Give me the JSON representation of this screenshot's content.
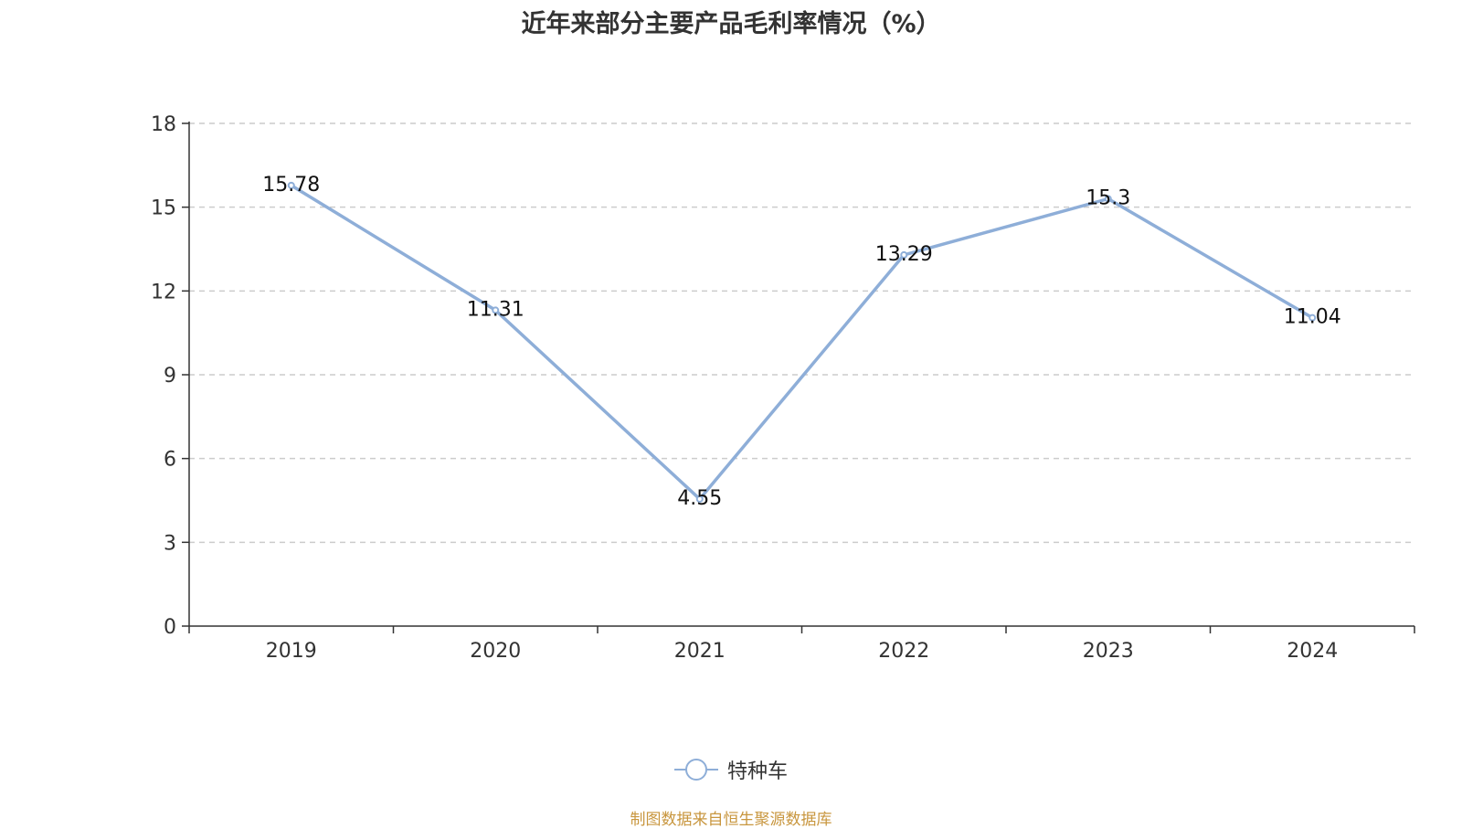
{
  "title": "近年来部分主要产品毛利率情况（%）",
  "source_note": "制图数据来自恒生聚源数据库",
  "colors": {
    "series_line": "#8eaed8",
    "axis": "#333333",
    "grid": "#cccccc",
    "source_note": "#c8963e"
  },
  "chart_data": {
    "type": "line",
    "title": "近年来部分主要产品毛利率情况（%）",
    "categories": [
      "2019",
      "2020",
      "2021",
      "2022",
      "2023",
      "2024"
    ],
    "series": [
      {
        "name": "特种车",
        "values": [
          15.78,
          11.31,
          4.55,
          13.29,
          15.3,
          11.04
        ]
      }
    ],
    "data_labels": [
      "15.78",
      "11.31",
      "4.55",
      "13.29",
      "15.3",
      "11.04"
    ],
    "y_ticks": [
      "0",
      "3",
      "6",
      "9",
      "12",
      "15",
      "18"
    ],
    "ylim": [
      0,
      18
    ],
    "grid": true,
    "legend_position": "bottom-center",
    "xlabel": "",
    "ylabel": ""
  }
}
